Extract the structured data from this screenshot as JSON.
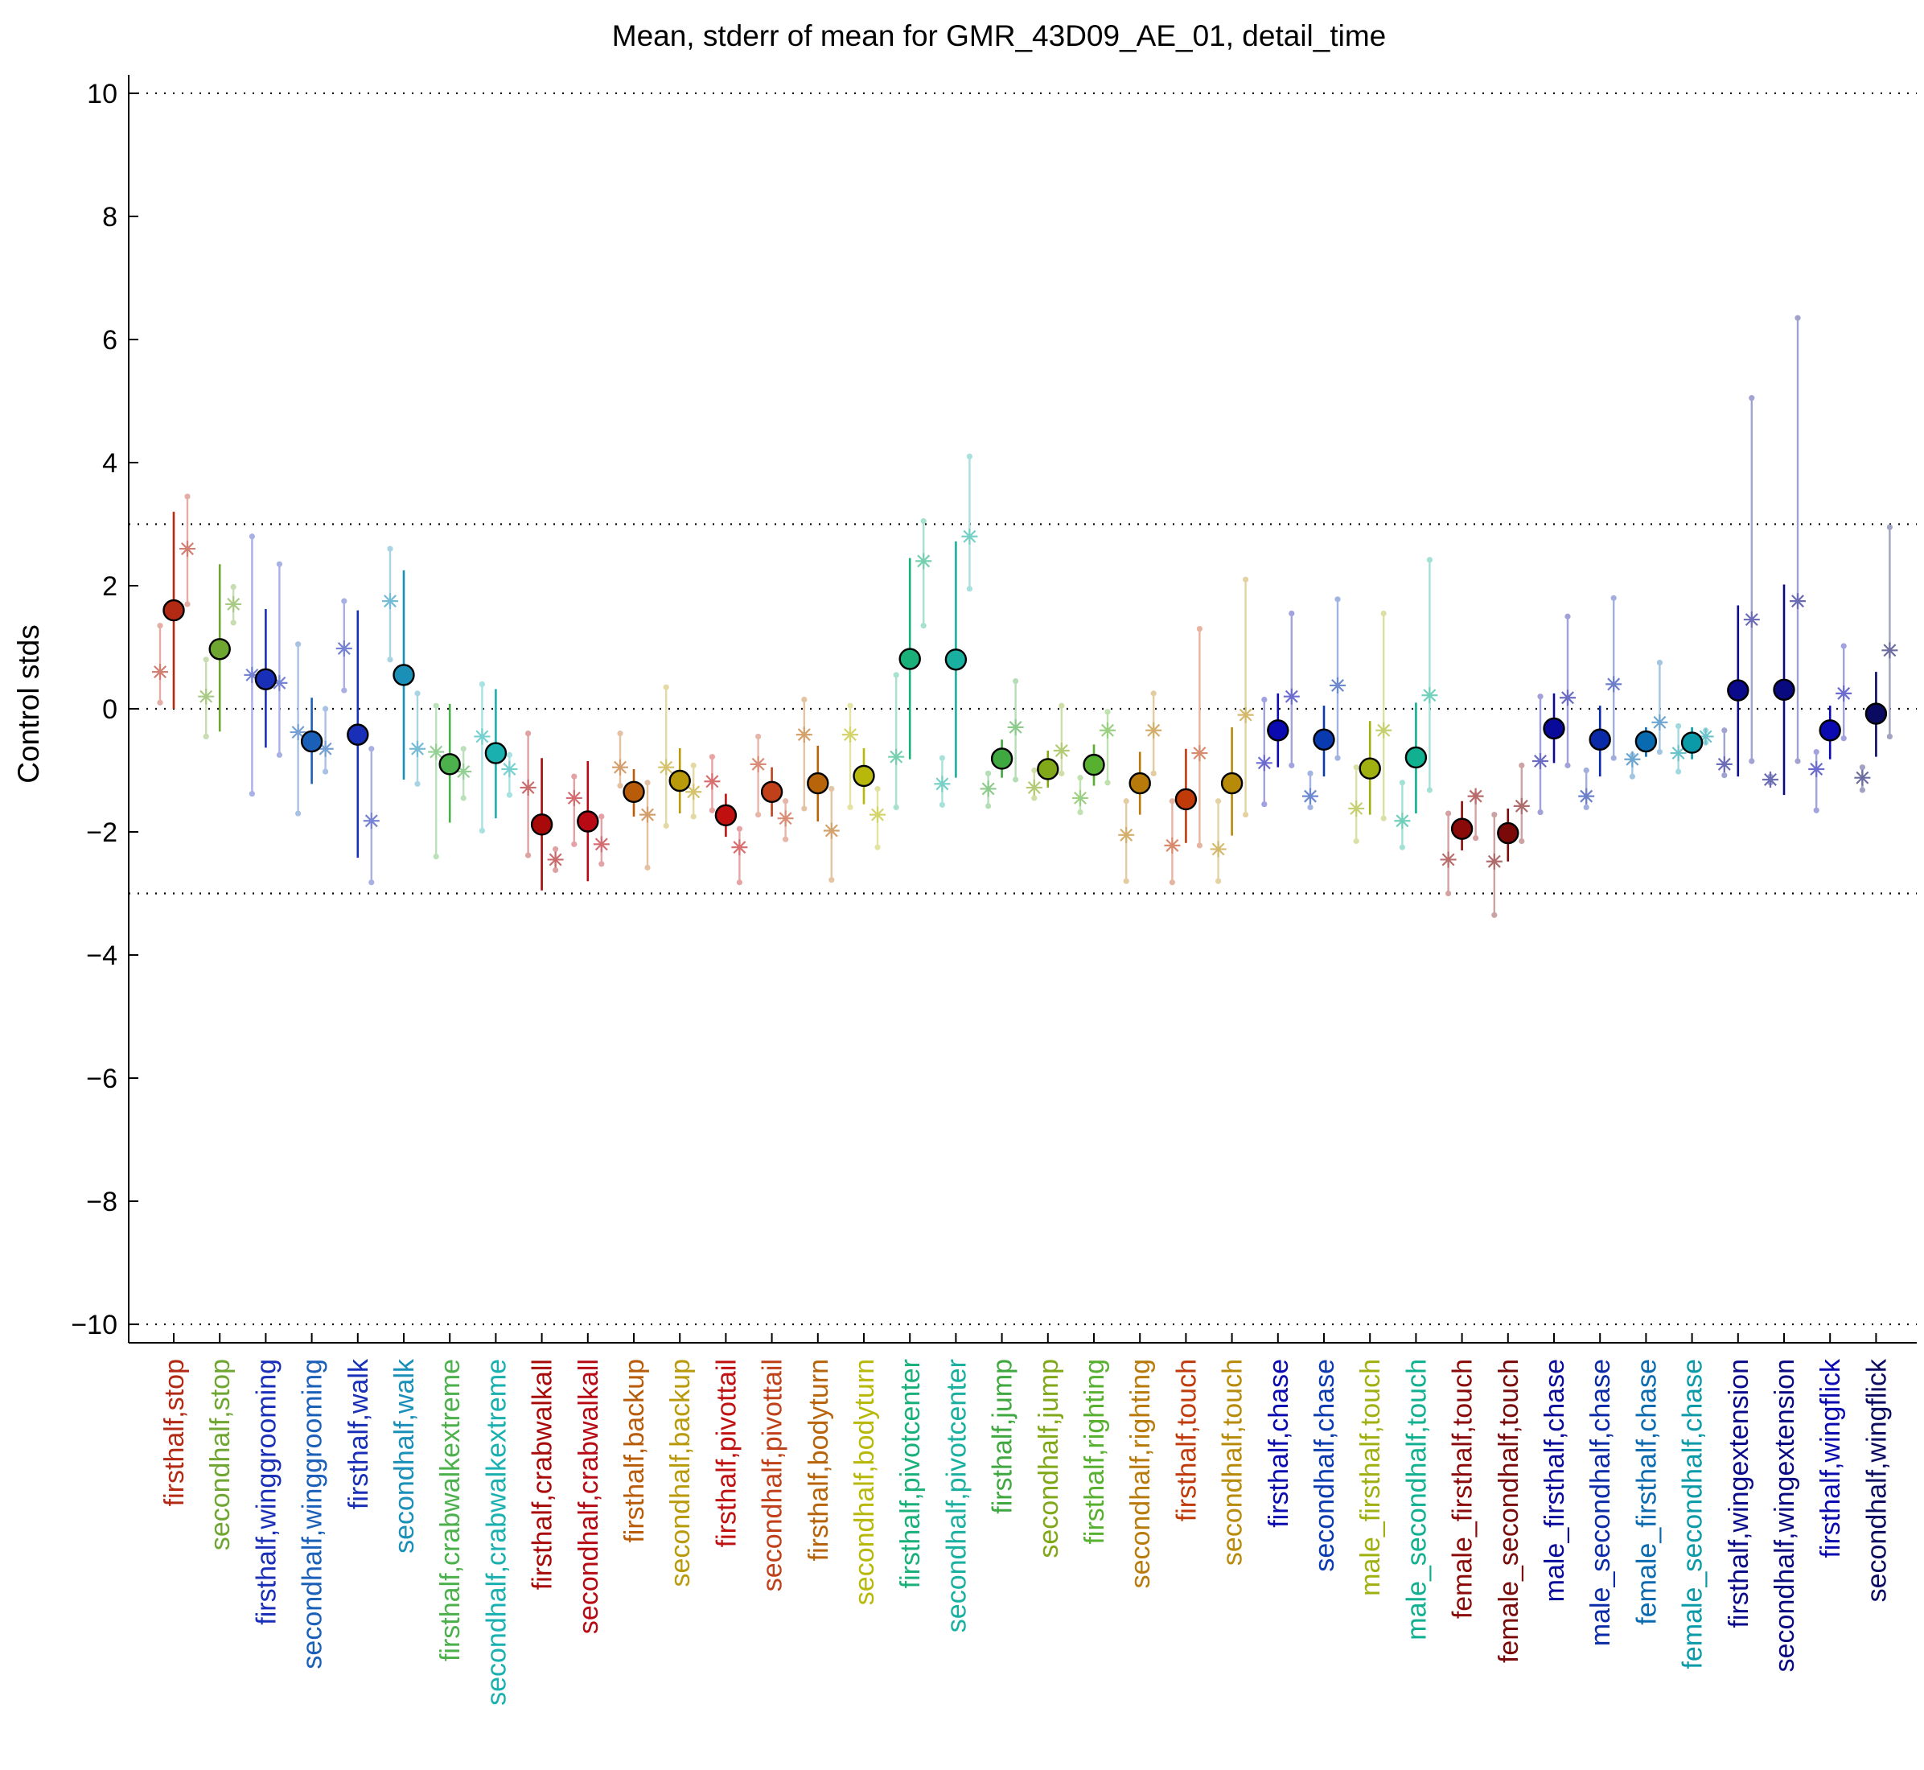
{
  "chart_data": {
    "type": "scatter",
    "title": "Mean, stderr of mean for GMR_43D09_AE_01, detail_time",
    "xlabel": "",
    "ylabel": "Control stds",
    "ylim": [
      -10.3,
      10.3
    ],
    "yticks": [
      -10,
      -8,
      -6,
      -4,
      -2,
      0,
      2,
      4,
      6,
      8,
      10
    ],
    "ytick_labels": [
      "−10",
      "−8",
      "−6",
      "−4",
      "−2",
      "0",
      "2",
      "4",
      "6",
      "8",
      "10"
    ],
    "reference_lines": [
      -10,
      -3,
      0,
      3,
      10
    ],
    "grid": false,
    "categories": [
      "firsthalf,stop",
      "secondhalf,stop",
      "firsthalf,winggrooming",
      "secondhalf,winggrooming",
      "firsthalf,walk",
      "secondhalf,walk",
      "firsthalf,crabwalkextreme",
      "secondhalf,crabwalkextreme",
      "firsthalf,crabwalkall",
      "secondhalf,crabwalkall",
      "firsthalf,backup",
      "secondhalf,backup",
      "firsthalf,pivottail",
      "secondhalf,pivottail",
      "firsthalf,bodyturn",
      "secondhalf,bodyturn",
      "firsthalf,pivotcenter",
      "secondhalf,pivotcenter",
      "firsthalf,jump",
      "secondhalf,jump",
      "firsthalf,righting",
      "secondhalf,righting",
      "firsthalf,touch",
      "secondhalf,touch",
      "firsthalf,chase",
      "secondhalf,chase",
      "male_firsthalf,touch",
      "male_secondhalf,touch",
      "female_firsthalf,touch",
      "female_secondhalf,touch",
      "male_firsthalf,chase",
      "male_secondhalf,chase",
      "female_firsthalf,chase",
      "female_secondhalf,chase",
      "firsthalf,wingextension",
      "secondhalf,wingextension",
      "firsthalf,wingflick",
      "secondhalf,wingflick"
    ],
    "colors": [
      "#b22a14",
      "#6fa632",
      "#1a2fb8",
      "#1a5fb8",
      "#1a2fb8",
      "#1a8fb8",
      "#4cb04c",
      "#1ab0b0",
      "#a80a0a",
      "#b80a14",
      "#b85c0a",
      "#b89a0a",
      "#c01010",
      "#c0401a",
      "#b8640a",
      "#b8b80a",
      "#1ab07a",
      "#1ab0a0",
      "#40a840",
      "#80a818",
      "#58b030",
      "#b87a0a",
      "#c03a0a",
      "#b88a0a",
      "#0a0ab0",
      "#0a3ab0",
      "#a0b010",
      "#10b090",
      "#8a0a0a",
      "#7a0a0a",
      "#0a0a9a",
      "#0a2aa8",
      "#0a6ab0",
      "#0a9aa8",
      "#0a0a8a",
      "#0a0a80",
      "#0a0ab0",
      "#0a0a60"
    ],
    "means": [
      1.6,
      0.97,
      0.48,
      -0.53,
      -0.42,
      0.55,
      -0.9,
      -0.72,
      -1.88,
      -1.83,
      -1.35,
      -1.17,
      -1.73,
      -1.35,
      -1.21,
      -1.09,
      0.81,
      0.8,
      -0.81,
      -0.98,
      -0.91,
      -1.21,
      -1.47,
      -1.21,
      -0.35,
      -0.5,
      -0.97,
      -0.79,
      -1.95,
      -2.02,
      -0.32,
      -0.5,
      -0.53,
      -0.55,
      0.3,
      0.31,
      -0.35,
      -0.08
    ],
    "stderr_low": [
      0.0,
      -0.37,
      -0.63,
      -1.22,
      -2.42,
      -1.15,
      -1.85,
      -1.78,
      -2.95,
      -2.8,
      -1.75,
      -1.7,
      -2.08,
      -1.75,
      -1.83,
      -1.55,
      -0.82,
      -1.12,
      -1.12,
      -1.28,
      -1.25,
      -1.72,
      -2.18,
      -2.06,
      -0.95,
      -1.1,
      -1.72,
      -1.7,
      -2.3,
      -2.48,
      -0.88,
      -1.1,
      -0.78,
      -0.82,
      -1.1,
      -1.4,
      -0.82,
      -0.78
    ],
    "stderr_high": [
      3.2,
      2.35,
      1.62,
      0.18,
      1.6,
      2.25,
      0.08,
      0.32,
      -0.8,
      -0.85,
      -0.98,
      -0.64,
      -1.38,
      -0.95,
      -0.6,
      -0.64,
      2.45,
      2.72,
      -0.5,
      -0.68,
      -0.58,
      -0.7,
      -0.65,
      -0.3,
      0.25,
      0.05,
      -0.2,
      0.1,
      -1.5,
      -1.62,
      0.25,
      0.05,
      -0.3,
      -0.3,
      1.68,
      2.02,
      0.05,
      0.6
    ],
    "star_left": [
      0.6,
      0.2,
      0.55,
      -0.38,
      0.98,
      1.75,
      -0.7,
      -0.45,
      -1.28,
      -1.45,
      -0.95,
      -0.95,
      -1.18,
      -0.9,
      -0.42,
      -0.42,
      -0.78,
      -1.22,
      -1.3,
      -1.28,
      -1.45,
      -2.05,
      -2.22,
      -2.28,
      -0.88,
      -1.42,
      -1.62,
      -1.82,
      -2.45,
      -2.48,
      -0.85,
      -1.42,
      -0.82,
      -0.72,
      -0.9,
      -1.15,
      -0.98,
      -1.12
    ],
    "star_right": [
      2.6,
      1.7,
      0.42,
      -0.65,
      -1.82,
      -0.65,
      -1.02,
      -0.98,
      -2.45,
      -2.2,
      -1.72,
      -1.35,
      -2.25,
      -1.78,
      -1.98,
      -1.72,
      2.4,
      2.8,
      -0.3,
      -0.68,
      -0.35,
      -0.35,
      -0.72,
      -0.1,
      0.2,
      0.38,
      -0.35,
      0.22,
      -1.42,
      -1.58,
      0.18,
      0.4,
      -0.22,
      -0.45,
      1.45,
      1.75,
      0.25,
      0.95
    ],
    "spread_left_low": [
      0.1,
      -0.45,
      -1.38,
      -1.7,
      0.3,
      0.8,
      -2.4,
      -1.98,
      -2.38,
      -2.2,
      -1.25,
      -1.9,
      -1.65,
      -1.72,
      -1.62,
      -1.6,
      -1.6,
      -1.56,
      -1.58,
      -1.45,
      -1.68,
      -2.8,
      -2.82,
      -2.8,
      -1.55,
      -1.6,
      -2.15,
      -2.25,
      -3.0,
      -3.35,
      -1.68,
      -1.6,
      -1.1,
      -1.02,
      -1.08,
      -1.2,
      -1.65,
      -1.32
    ],
    "spread_left_high": [
      1.35,
      0.8,
      2.8,
      1.05,
      1.75,
      2.6,
      0.05,
      0.4,
      -0.4,
      -1.1,
      -0.4,
      0.35,
      -0.78,
      -0.45,
      0.15,
      0.05,
      0.55,
      -0.8,
      -1.05,
      -1.0,
      -1.12,
      -1.5,
      -1.5,
      -1.5,
      0.15,
      -1.05,
      -0.95,
      -1.2,
      -1.7,
      -1.72,
      0.2,
      -1.0,
      -0.75,
      -0.28,
      -0.35,
      -1.1,
      -0.7,
      -0.95
    ],
    "spread_right_low": [
      1.7,
      1.4,
      -0.75,
      -1.02,
      -2.82,
      -1.22,
      -1.45,
      -1.4,
      -2.62,
      -2.52,
      -2.58,
      -1.75,
      -2.82,
      -2.12,
      -2.78,
      -2.25,
      1.35,
      1.95,
      -1.15,
      -1.05,
      -1.2,
      -1.05,
      -2.22,
      -1.72,
      -0.92,
      -0.8,
      -1.78,
      -1.32,
      -2.1,
      -2.15,
      -0.92,
      -0.8,
      -0.7,
      -0.55,
      -0.85,
      -0.85,
      -0.48,
      -0.45
    ],
    "spread_right_high": [
      3.45,
      1.98,
      2.35,
      0.0,
      -0.65,
      0.25,
      -0.65,
      -0.75,
      -2.28,
      -1.75,
      -1.2,
      -0.92,
      -1.95,
      -1.5,
      -1.3,
      -1.3,
      3.05,
      4.1,
      0.45,
      0.05,
      -0.05,
      0.25,
      1.3,
      2.1,
      1.55,
      1.78,
      1.55,
      2.42,
      -1.4,
      -0.92,
      1.5,
      1.8,
      0.75,
      -0.35,
      5.05,
      6.35,
      1.02,
      2.95
    ]
  }
}
